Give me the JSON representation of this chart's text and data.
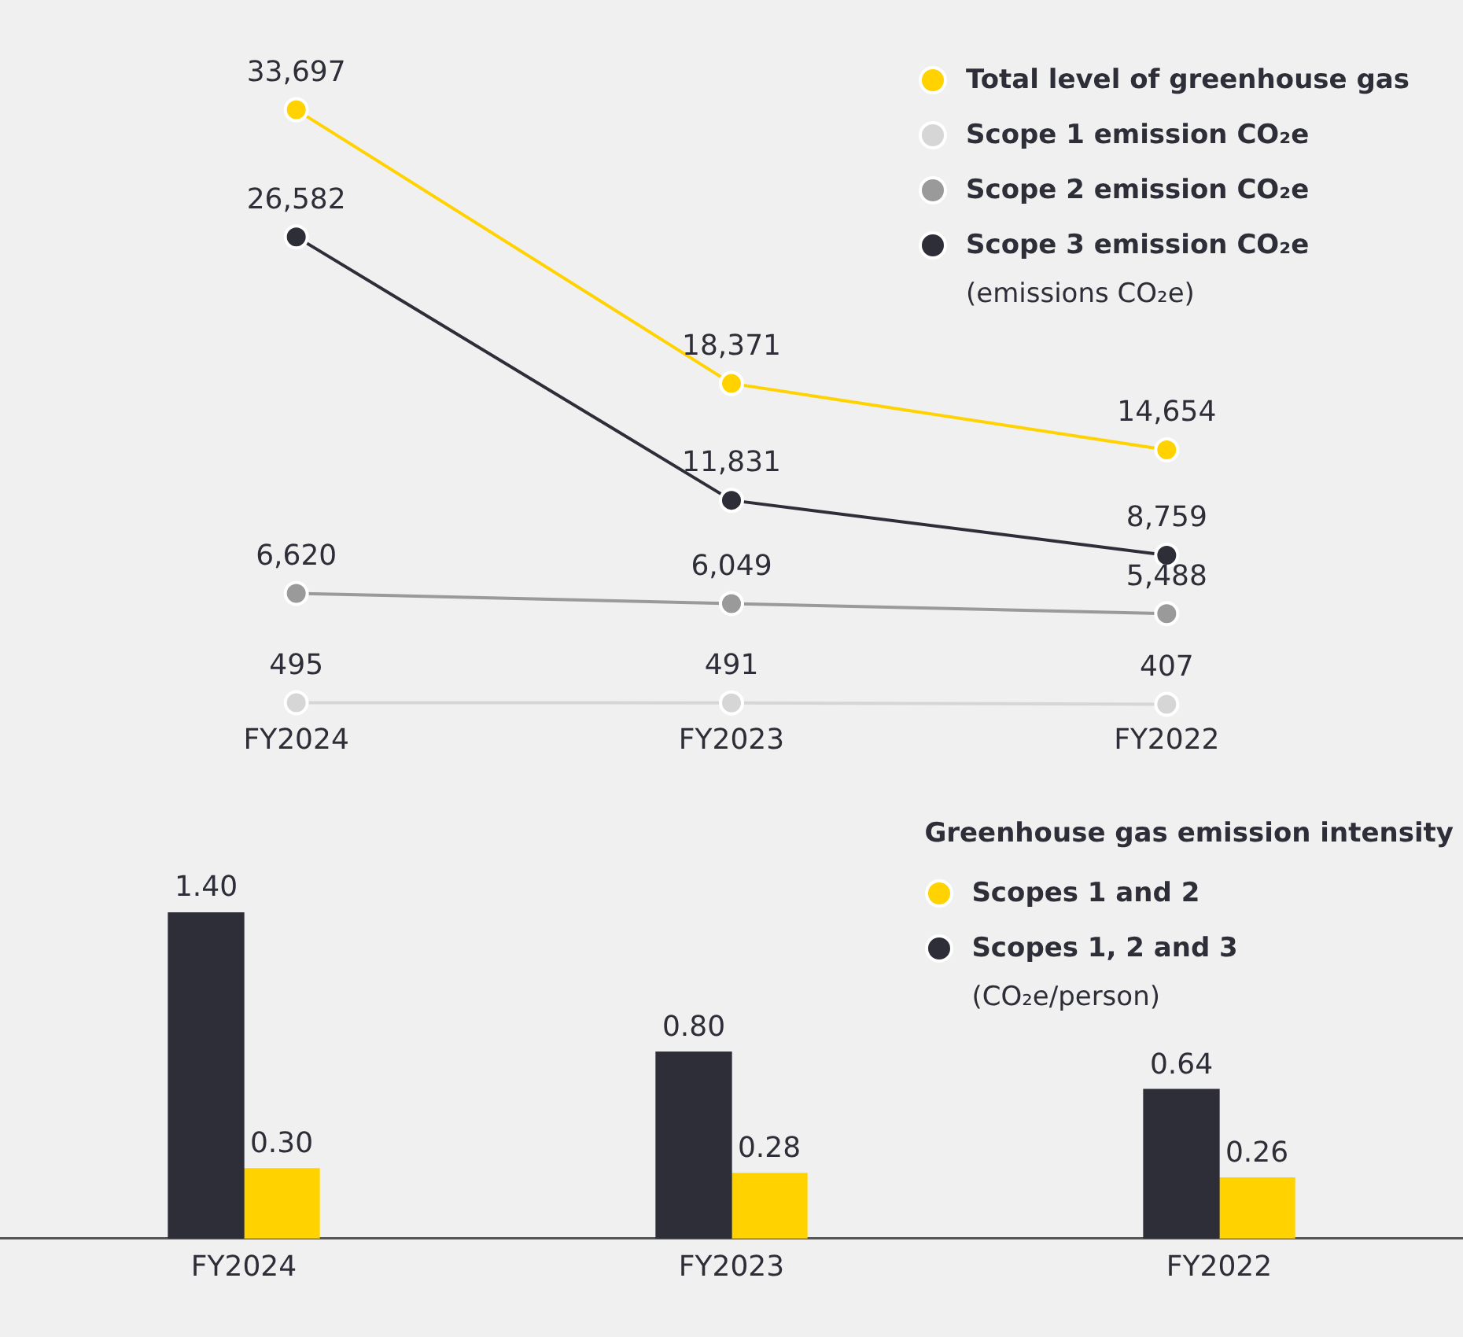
{
  "chart_data": [
    {
      "type": "line",
      "categories": [
        "FY2024",
        "FY2023",
        "FY2022"
      ],
      "legend": "top right",
      "marker": "circle",
      "grid": false,
      "tick_labels": "x",
      "annotations": [
        "(emissions CO₂e)"
      ],
      "series": [
        {
          "name": "Total level of greenhouse gas",
          "color": "#ffd200",
          "values": [
            33697,
            18371,
            14654
          ],
          "value_labels": [
            "33,697",
            "18,371",
            "14,654"
          ]
        },
        {
          "name": "Scope 1 emission CO₂e",
          "color": "#d6d6d6",
          "values": [
            495,
            491,
            407
          ],
          "value_labels": [
            "495",
            "491",
            "407"
          ]
        },
        {
          "name": "Scope 2 emission CO₂e",
          "color": "#9a9a9a",
          "values": [
            6620,
            6049,
            5488
          ],
          "value_labels": [
            "6,620",
            "6,049",
            "5,488"
          ]
        },
        {
          "name": "Scope 3 emission CO₂e",
          "color": "#2e2e38",
          "values": [
            26582,
            11831,
            8759
          ],
          "value_labels": [
            "26,582",
            "11,831",
            "8,759"
          ]
        }
      ]
    },
    {
      "type": "bar",
      "categories": [
        "FY2024",
        "FY2023",
        "FY2022"
      ],
      "legend": "top right",
      "legend_title": "Greenhouse gas emission intensity",
      "grid": false,
      "tick_labels": "x",
      "annotations": [
        "(CO₂e/person)"
      ],
      "series": [
        {
          "name": "Scopes 1, 2 and 3",
          "color": "#2e2e38",
          "values": [
            1.4,
            0.8,
            0.64
          ],
          "value_labels": [
            "1.40",
            "0.80",
            "0.64"
          ]
        },
        {
          "name": "Scopes 1 and 2",
          "color": "#ffd200",
          "values": [
            0.3,
            0.28,
            0.26
          ],
          "value_labels": [
            "0.30",
            "0.28",
            "0.26"
          ]
        }
      ]
    }
  ]
}
